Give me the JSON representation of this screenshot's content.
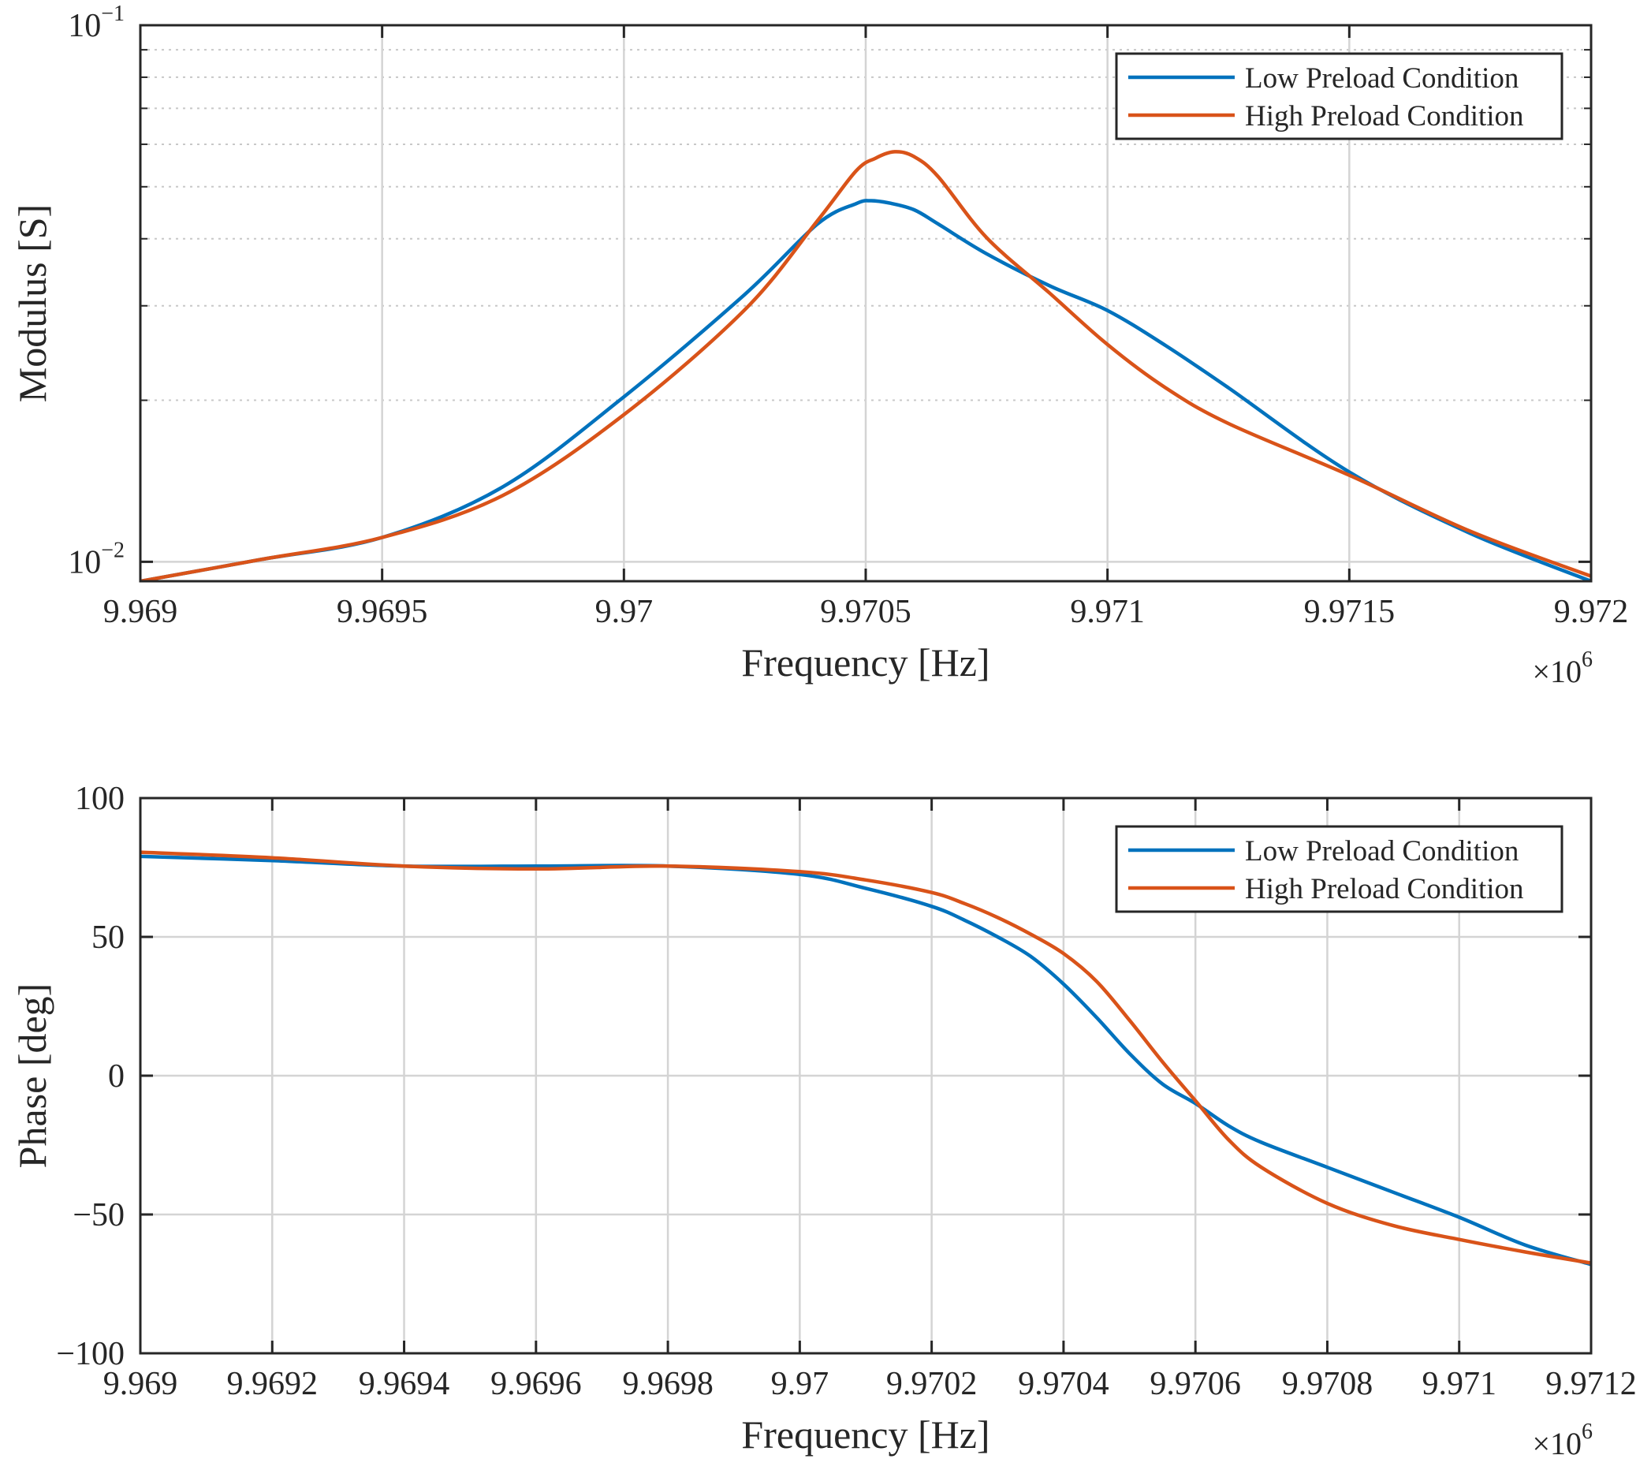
{
  "colors": {
    "low": "#0072BD",
    "high": "#D95319",
    "axis": "#262626",
    "grid": "#d4d4d4",
    "minor_grid": "#c8c8c8"
  },
  "chart_data": [
    {
      "type": "line",
      "yscale": "log",
      "xlabel": "Frequency [Hz]",
      "ylabel": "Modulus [S]",
      "x_multiplier": "×10",
      "x_multiplier_exp": "6",
      "xlim": [
        9.969,
        9.972
      ],
      "ylim": [
        0.0092,
        0.1
      ],
      "x_ticks": [
        9.969,
        9.9695,
        9.97,
        9.9705,
        9.971,
        9.9715,
        9.972
      ],
      "x_tick_labels": [
        "9.969",
        "9.9695",
        "9.97",
        "9.9705",
        "9.971",
        "9.9715",
        "9.972"
      ],
      "y_ticks": [
        0.01,
        0.1
      ],
      "y_tick_labels": [
        {
          "base": "10",
          "exp": "−2"
        },
        {
          "base": "10",
          "exp": "−1"
        }
      ],
      "grid": true,
      "minor_grid": true,
      "legend": "top-right",
      "series": [
        {
          "name": "Low Preload Condition",
          "color_key": "low",
          "x": [
            9.969,
            9.96925,
            9.9695,
            9.96975,
            9.97,
            9.97025,
            9.9704,
            9.97048,
            9.97051,
            9.97055,
            9.9706,
            9.97065,
            9.97075,
            9.97088,
            9.971,
            9.97112,
            9.97125,
            9.9715,
            9.97175,
            9.972
          ],
          "y": [
            0.0092,
            0.0101,
            0.0111,
            0.0138,
            0.0203,
            0.0315,
            0.0426,
            0.0465,
            0.0471,
            0.0466,
            0.0453,
            0.0426,
            0.0375,
            0.0327,
            0.0294,
            0.0253,
            0.0211,
            0.0147,
            0.0113,
            0.0092
          ]
        },
        {
          "name": "High Preload Condition",
          "color_key": "high",
          "x": [
            9.969,
            9.96925,
            9.9695,
            9.96975,
            9.97,
            9.97025,
            9.9704,
            9.97048,
            9.97052,
            9.97056,
            9.9706,
            9.97065,
            9.97075,
            9.97088,
            9.971,
            9.97112,
            9.97125,
            9.9715,
            9.97175,
            9.972
          ],
          "y": [
            0.0092,
            0.0101,
            0.0111,
            0.0133,
            0.0188,
            0.0295,
            0.0432,
            0.0535,
            0.0565,
            0.0581,
            0.0569,
            0.0522,
            0.0402,
            0.0317,
            0.0254,
            0.0211,
            0.0181,
            0.0145,
            0.0114,
            0.0094
          ]
        }
      ]
    },
    {
      "type": "line",
      "yscale": "linear",
      "xlabel": "Frequency [Hz]",
      "ylabel": "Phase [deg]",
      "x_multiplier": "×10",
      "x_multiplier_exp": "6",
      "xlim": [
        9.969,
        9.9712
      ],
      "ylim": [
        -100,
        100
      ],
      "x_ticks": [
        9.969,
        9.9692,
        9.9694,
        9.9696,
        9.9698,
        9.97,
        9.9702,
        9.9704,
        9.9706,
        9.9708,
        9.971,
        9.9712
      ],
      "x_tick_labels": [
        "9.969",
        "9.9692",
        "9.9694",
        "9.9696",
        "9.9698",
        "9.97",
        "9.9702",
        "9.9704",
        "9.9706",
        "9.9708",
        "9.971",
        "9.9712"
      ],
      "y_ticks": [
        -100,
        -50,
        0,
        50,
        100
      ],
      "y_tick_labels": [
        "−100",
        "−50",
        "0",
        "50",
        "100"
      ],
      "grid": true,
      "legend": "top-right",
      "series": [
        {
          "name": "Low Preload Condition",
          "color_key": "low",
          "x": [
            9.969,
            9.9692,
            9.9694,
            9.9696,
            9.9698,
            9.97,
            9.9701,
            9.9702,
            9.97025,
            9.9703,
            9.97035,
            9.9704,
            9.97045,
            9.9705,
            9.97055,
            9.9706,
            9.97065,
            9.9707,
            9.9708,
            9.9709,
            9.971,
            9.9711,
            9.9712
          ],
          "y": [
            79,
            77.5,
            75.5,
            75.5,
            75.5,
            72.5,
            67.5,
            61,
            56,
            50,
            43,
            33,
            21,
            8,
            -3,
            -10,
            -18,
            -24,
            -33,
            -42,
            -51,
            -61,
            -68
          ]
        },
        {
          "name": "High Preload Condition",
          "color_key": "high",
          "x": [
            9.969,
            9.9692,
            9.9694,
            9.9696,
            9.9698,
            9.97,
            9.9701,
            9.9702,
            9.97025,
            9.9703,
            9.97035,
            9.9704,
            9.97045,
            9.9705,
            9.97055,
            9.9706,
            9.97065,
            9.9707,
            9.9708,
            9.9709,
            9.971,
            9.9711,
            9.9712
          ],
          "y": [
            80.5,
            78.5,
            75.5,
            74.5,
            75.5,
            73.5,
            70.5,
            66,
            62,
            57,
            51,
            44,
            34,
            20,
            5,
            -9,
            -23,
            -33,
            -46,
            -54,
            -59,
            -63.5,
            -67.5
          ]
        }
      ]
    }
  ]
}
